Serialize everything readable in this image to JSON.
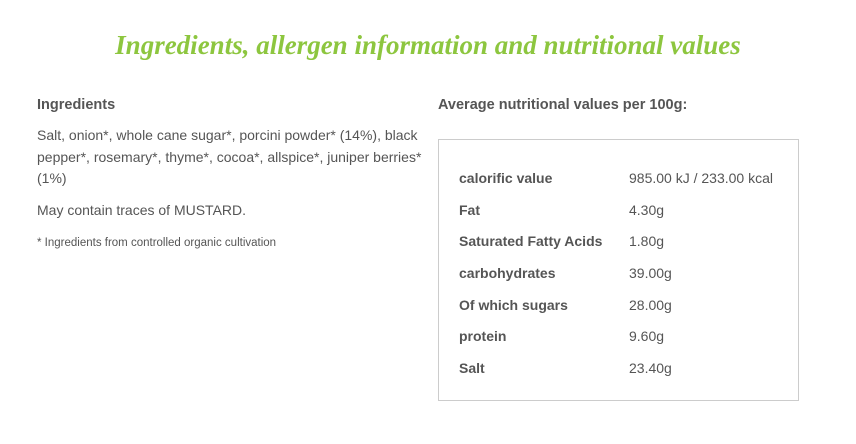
{
  "header": {
    "title": "Ingredients, allergen information and nutritional values"
  },
  "ingredients": {
    "heading": "Ingredients",
    "text": "Salt, onion*, whole cane sugar*, porcini powder* (14%), black pepper*, rosemary*, thyme*, cocoa*, allspice*, juniper berries* (1%)",
    "allergen": "May contain traces of MUSTARD.",
    "footnote": "* Ingredients from controlled organic cultivation"
  },
  "nutrition": {
    "heading": "Average nutritional values per 100g:",
    "rows": [
      [
        "calorific value",
        "985.00 kJ / 233.00 kcal"
      ],
      [
        "Fat",
        "4.30g"
      ],
      [
        "Saturated Fatty Acids",
        "1.80g"
      ],
      [
        "carbohydrates",
        "39.00g"
      ],
      [
        "Of which sugars",
        "28.00g"
      ],
      [
        "protein",
        "9.60g"
      ],
      [
        "Salt",
        "23.40g"
      ]
    ]
  }
}
